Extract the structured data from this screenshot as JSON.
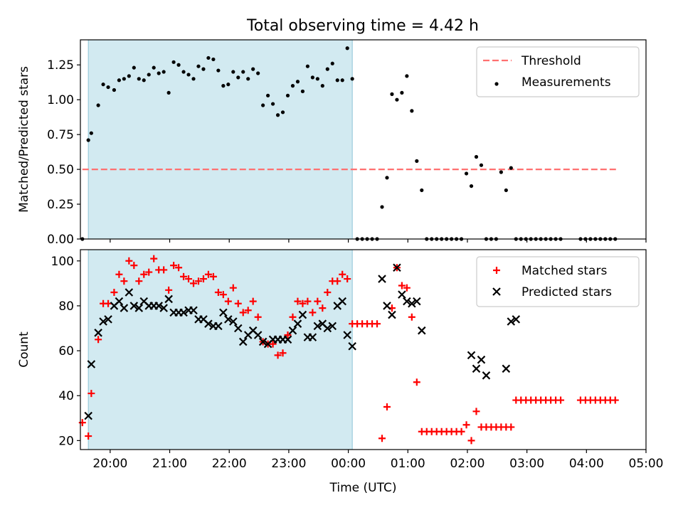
{
  "figure": {
    "title": "Total observing time = 4.42 h"
  },
  "chart_data": [
    {
      "type": "scatter",
      "panel": "ratio",
      "ylabel": "Matched/Predicted stars",
      "ylim": [
        0,
        1.43
      ],
      "xlim": [
        "19:30",
        "05:00"
      ],
      "x_ticks": [
        "20:00",
        "21:00",
        "22:00",
        "23:00",
        "00:00",
        "01:00",
        "02:00",
        "03:00",
        "04:00",
        "05:00"
      ],
      "x_ticklabels_visible": false,
      "y_ticks": [
        "0.00",
        "0.25",
        "0.50",
        "0.75",
        "1.00",
        "1.25"
      ],
      "legend": {
        "position": "upper right",
        "entries": [
          "Threshold",
          "Measurements"
        ]
      },
      "shaded_region": {
        "from": "19:38",
        "to": "00:04",
        "color": "#add8e6"
      },
      "threshold": {
        "name": "Threshold",
        "value": 0.5,
        "from": "19:32",
        "to": "04:32",
        "color": "#ff7070"
      },
      "series": [
        {
          "name": "Measurements",
          "color": "#000000",
          "x": [
            "19:32",
            "19:38",
            "19:41",
            "19:48",
            "19:53",
            "19:58",
            "20:04",
            "20:09",
            "20:14",
            "20:19",
            "20:24",
            "20:29",
            "20:34",
            "20:39",
            "20:44",
            "20:49",
            "20:54",
            "20:59",
            "21:04",
            "21:09",
            "21:14",
            "21:19",
            "21:24",
            "21:29",
            "21:34",
            "21:39",
            "21:44",
            "21:49",
            "21:54",
            "21:59",
            "22:04",
            "22:09",
            "22:14",
            "22:19",
            "22:24",
            "22:29",
            "22:34",
            "22:39",
            "22:44",
            "22:49",
            "22:54",
            "22:59",
            "23:04",
            "23:09",
            "23:14",
            "23:19",
            "23:24",
            "23:29",
            "23:34",
            "23:39",
            "23:44",
            "23:49",
            "23:54",
            "23:59",
            "00:04",
            "00:09",
            "00:14",
            "00:19",
            "00:24",
            "00:29",
            "00:34",
            "00:39",
            "00:44",
            "00:49",
            "00:54",
            "00:59",
            "01:04",
            "01:09",
            "01:14",
            "01:19",
            "01:24",
            "01:29",
            "01:34",
            "01:39",
            "01:44",
            "01:49",
            "01:54",
            "01:59",
            "02:04",
            "02:09",
            "02:14",
            "02:19",
            "02:24",
            "02:29",
            "02:34",
            "02:39",
            "02:44",
            "02:49",
            "02:54",
            "02:59",
            "03:04",
            "03:09",
            "03:14",
            "03:19",
            "03:24",
            "03:29",
            "03:34",
            "03:54",
            "03:59",
            "04:04",
            "04:09",
            "04:14",
            "04:19",
            "04:24",
            "04:29"
          ],
          "y": [
            0.0,
            0.71,
            0.76,
            0.96,
            1.11,
            1.09,
            1.07,
            1.14,
            1.15,
            1.17,
            1.23,
            1.15,
            1.14,
            1.18,
            1.23,
            1.19,
            1.2,
            1.05,
            1.27,
            1.25,
            1.2,
            1.18,
            1.15,
            1.24,
            1.22,
            1.3,
            1.29,
            1.21,
            1.1,
            1.11,
            1.2,
            1.16,
            1.2,
            1.15,
            1.22,
            1.19,
            0.96,
            1.03,
            0.97,
            0.89,
            0.91,
            1.03,
            1.1,
            1.13,
            1.06,
            1.24,
            1.16,
            1.15,
            1.1,
            1.22,
            1.26,
            1.14,
            1.14,
            1.37,
            1.15,
            0.0,
            0.0,
            0.0,
            0.0,
            0.0,
            0.23,
            0.44,
            1.04,
            1.0,
            1.05,
            1.17,
            0.92,
            0.56,
            0.35,
            0.0,
            0.0,
            0.0,
            0.0,
            0.0,
            0.0,
            0.0,
            0.0,
            0.47,
            0.38,
            0.59,
            0.53,
            0.0,
            0.0,
            0.0,
            0.48,
            0.35,
            0.51,
            0.0,
            0.0,
            0.0,
            0.0,
            0.0,
            0.0,
            0.0,
            0.0,
            0.0,
            0.0,
            0.0,
            0.0,
            0.0,
            0.0,
            0.0,
            0.0,
            0.0,
            0.0
          ]
        }
      ]
    },
    {
      "type": "scatter",
      "panel": "counts",
      "xlabel": "Time (UTC)",
      "ylabel": "Count",
      "ylim": [
        16,
        105
      ],
      "xlim": [
        "19:30",
        "05:00"
      ],
      "x_ticks": [
        "20:00",
        "21:00",
        "22:00",
        "23:00",
        "00:00",
        "01:00",
        "02:00",
        "03:00",
        "04:00",
        "05:00"
      ],
      "y_ticks": [
        "20",
        "40",
        "60",
        "80",
        "100"
      ],
      "legend": {
        "position": "upper right",
        "entries": [
          "Matched stars",
          "Predicted stars"
        ]
      },
      "shaded_region": {
        "from": "19:38",
        "to": "00:04",
        "color": "#add8e6"
      },
      "series": [
        {
          "name": "Matched stars",
          "marker": "+",
          "color": "#ff0000",
          "x": [
            "19:32",
            "19:38",
            "19:41",
            "19:48",
            "19:53",
            "19:58",
            "20:04",
            "20:09",
            "20:14",
            "20:19",
            "20:24",
            "20:29",
            "20:34",
            "20:39",
            "20:44",
            "20:49",
            "20:54",
            "20:59",
            "21:04",
            "21:09",
            "21:14",
            "21:19",
            "21:24",
            "21:29",
            "21:34",
            "21:39",
            "21:44",
            "21:49",
            "21:54",
            "21:59",
            "22:04",
            "22:09",
            "22:14",
            "22:19",
            "22:24",
            "22:29",
            "22:34",
            "22:39",
            "22:44",
            "22:49",
            "22:54",
            "22:59",
            "23:04",
            "23:09",
            "23:14",
            "23:19",
            "23:24",
            "23:29",
            "23:34",
            "23:39",
            "23:44",
            "23:49",
            "23:54",
            "23:59",
            "00:04",
            "00:09",
            "00:14",
            "00:19",
            "00:24",
            "00:29",
            "00:34",
            "00:39",
            "00:44",
            "00:49",
            "00:54",
            "00:59",
            "01:04",
            "01:09",
            "01:14",
            "01:19",
            "01:24",
            "01:29",
            "01:34",
            "01:39",
            "01:44",
            "01:49",
            "01:54",
            "01:59",
            "02:04",
            "02:09",
            "02:14",
            "02:19",
            "02:24",
            "02:29",
            "02:34",
            "02:39",
            "02:44",
            "02:49",
            "02:54",
            "02:59",
            "03:04",
            "03:09",
            "03:14",
            "03:19",
            "03:24",
            "03:29",
            "03:34",
            "03:54",
            "03:59",
            "04:04",
            "04:09",
            "04:14",
            "04:19",
            "04:24",
            "04:29"
          ],
          "y": [
            28,
            22,
            41,
            65,
            81,
            81,
            86,
            94,
            91,
            100,
            98,
            91,
            94,
            95,
            101,
            96,
            96,
            87,
            98,
            97,
            93,
            92,
            90,
            91,
            92,
            94,
            93,
            86,
            85,
            82,
            88,
            81,
            77,
            78,
            82,
            75,
            64,
            63,
            63,
            58,
            59,
            67,
            75,
            82,
            81,
            82,
            77,
            82,
            79,
            86,
            91,
            91,
            94,
            92,
            72,
            72,
            72,
            72,
            72,
            72,
            21,
            35,
            79,
            97,
            89,
            88,
            75,
            46,
            24,
            24,
            24,
            24,
            24,
            24,
            24,
            24,
            24,
            27,
            20,
            33,
            26,
            26,
            26,
            26,
            26,
            26,
            26,
            38,
            38,
            38,
            38,
            38,
            38,
            38,
            38,
            38,
            38,
            38,
            38,
            38,
            38,
            38,
            38,
            38,
            38
          ]
        },
        {
          "name": "Predicted stars",
          "marker": "x",
          "color": "#000000",
          "x": [
            "19:38",
            "19:41",
            "19:48",
            "19:53",
            "19:58",
            "20:04",
            "20:09",
            "20:14",
            "20:19",
            "20:24",
            "20:29",
            "20:34",
            "20:39",
            "20:44",
            "20:49",
            "20:54",
            "20:59",
            "21:04",
            "21:09",
            "21:14",
            "21:19",
            "21:24",
            "21:29",
            "21:34",
            "21:39",
            "21:44",
            "21:49",
            "21:54",
            "21:59",
            "22:04",
            "22:09",
            "22:14",
            "22:19",
            "22:24",
            "22:29",
            "22:34",
            "22:39",
            "22:44",
            "22:49",
            "22:54",
            "22:59",
            "23:04",
            "23:09",
            "23:14",
            "23:19",
            "23:24",
            "23:29",
            "23:34",
            "23:39",
            "23:44",
            "23:49",
            "23:54",
            "23:59",
            "00:04",
            "00:34",
            "00:39",
            "00:44",
            "00:49",
            "00:54",
            "00:59",
            "01:04",
            "01:09",
            "01:14",
            "02:04",
            "02:09",
            "02:14",
            "02:19",
            "02:39",
            "02:44",
            "02:49"
          ],
          "y": [
            31,
            54,
            68,
            73,
            74,
            80,
            82,
            79,
            86,
            80,
            79,
            82,
            80,
            80,
            80,
            79,
            83,
            77,
            77,
            77,
            78,
            78,
            74,
            74,
            72,
            71,
            71,
            77,
            74,
            73,
            70,
            64,
            67,
            69,
            67,
            64,
            63,
            65,
            65,
            65,
            65,
            69,
            72,
            76,
            66,
            66,
            71,
            72,
            70,
            71,
            80,
            82,
            67,
            62,
            92,
            80,
            76,
            97,
            85,
            82,
            81,
            82,
            69,
            58,
            52,
            56,
            49,
            52,
            73,
            74
          ]
        }
      ]
    }
  ]
}
